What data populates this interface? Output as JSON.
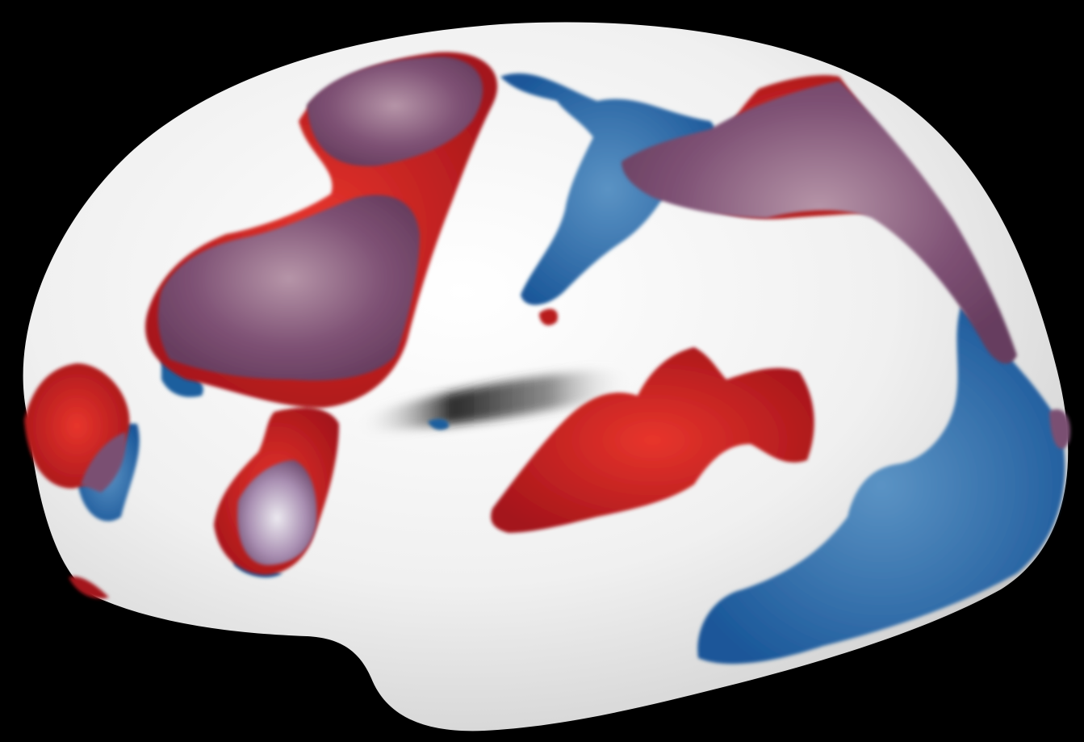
{
  "scene": {
    "subject": "inflated-brain-surface-lateral",
    "colors": {
      "background": "#000000",
      "surface": "#f2f2f2",
      "surface_shadow": "#9a9a9a",
      "sulcus": "#111111",
      "positive": "#c41e1e",
      "positive_dark": "#8e1010",
      "negative": "#1f5f9e",
      "negative_dark": "#154a80",
      "overlap": "#7a4f72",
      "highlight": "#d9c7d2"
    }
  }
}
